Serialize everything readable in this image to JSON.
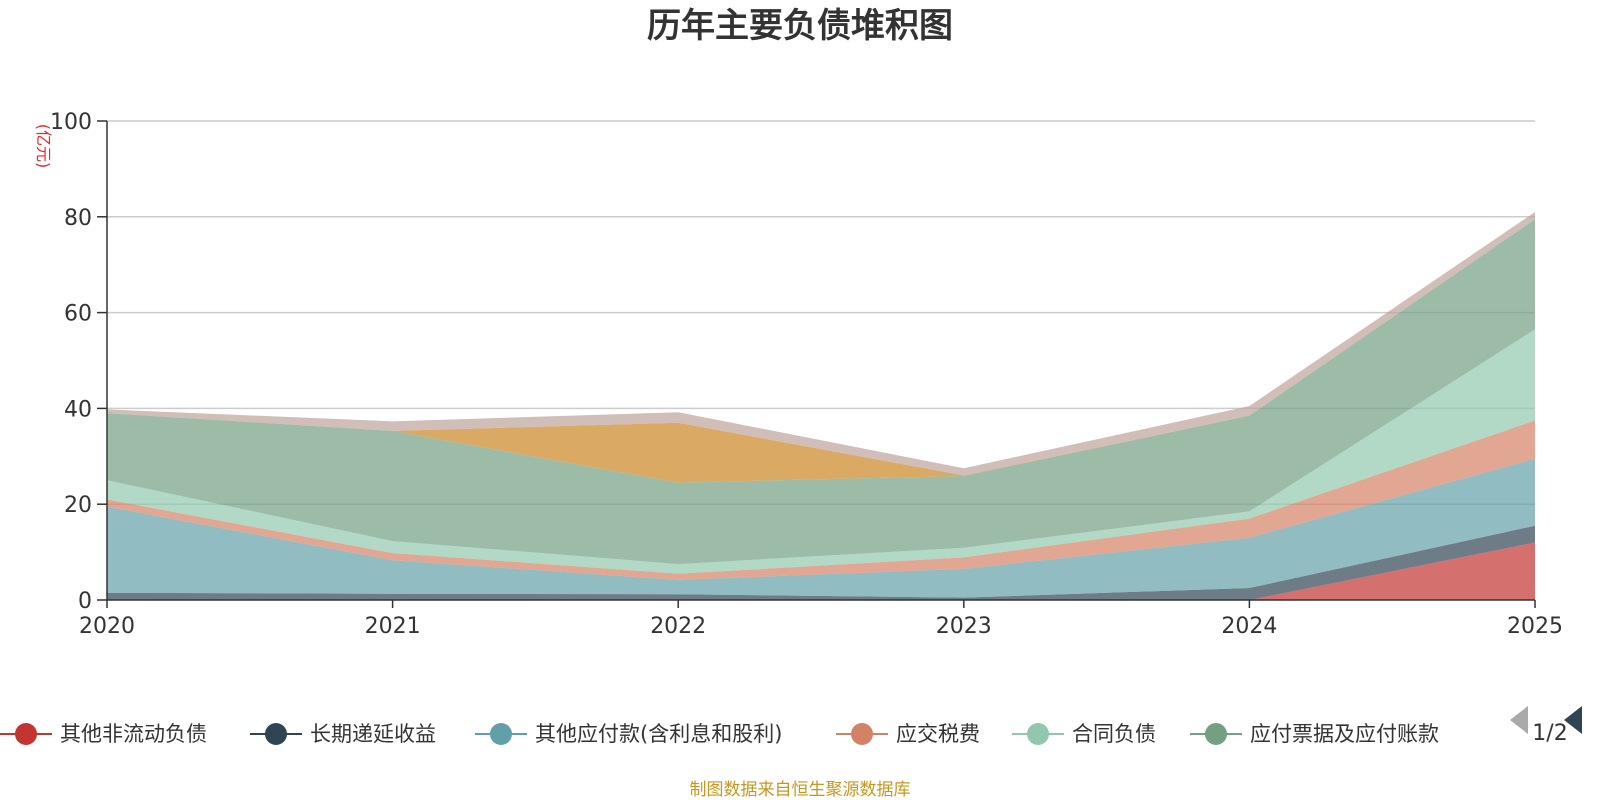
{
  "chart_data": {
    "type": "area",
    "stacked": true,
    "title": "历年主要负债堆积图",
    "unit_label": "(亿元)",
    "x": [
      "2020",
      "2021",
      "2022",
      "2023",
      "2024",
      "2025"
    ],
    "ylim": [
      0,
      100
    ],
    "yticks": [
      "0",
      "20",
      "40",
      "60",
      "80",
      "100"
    ],
    "grid": true,
    "series": [
      {
        "name": "其他非流动负债",
        "color": "#c23531",
        "values": [
          0,
          0,
          0,
          0,
          0,
          12
        ]
      },
      {
        "name": "长期递延收益",
        "color": "#2f4554",
        "values": [
          1.5,
          1.3,
          1.2,
          0.5,
          2.5,
          3.5
        ]
      },
      {
        "name": "其他应付款(含利息和股利)",
        "color": "#61a0a8",
        "values": [
          18,
          7,
          3,
          6,
          10.5,
          14
        ]
      },
      {
        "name": "应交税费",
        "color": "#d48265",
        "values": [
          1.5,
          1.5,
          1.3,
          2.4,
          4,
          8
        ]
      },
      {
        "name": "合同负债",
        "color": "#91c7ae",
        "values": [
          4,
          2.5,
          2,
          2,
          1.5,
          19
        ]
      },
      {
        "name": "应付票据及应付账款",
        "color": "#749f83",
        "values": [
          14,
          23,
          17,
          15,
          20,
          23
        ]
      },
      {
        "name": "",
        "color": "#ca8622",
        "values": [
          0,
          0,
          12.5,
          0.1,
          0,
          0
        ]
      },
      {
        "name": "",
        "color": "#bda29a",
        "values": [
          0.8,
          2,
          2.2,
          1.5,
          2,
          1.5
        ]
      }
    ],
    "legend": {
      "position": "bottom",
      "page": "1/2"
    }
  },
  "source_text": "制图数据来自恒生聚源数据库"
}
